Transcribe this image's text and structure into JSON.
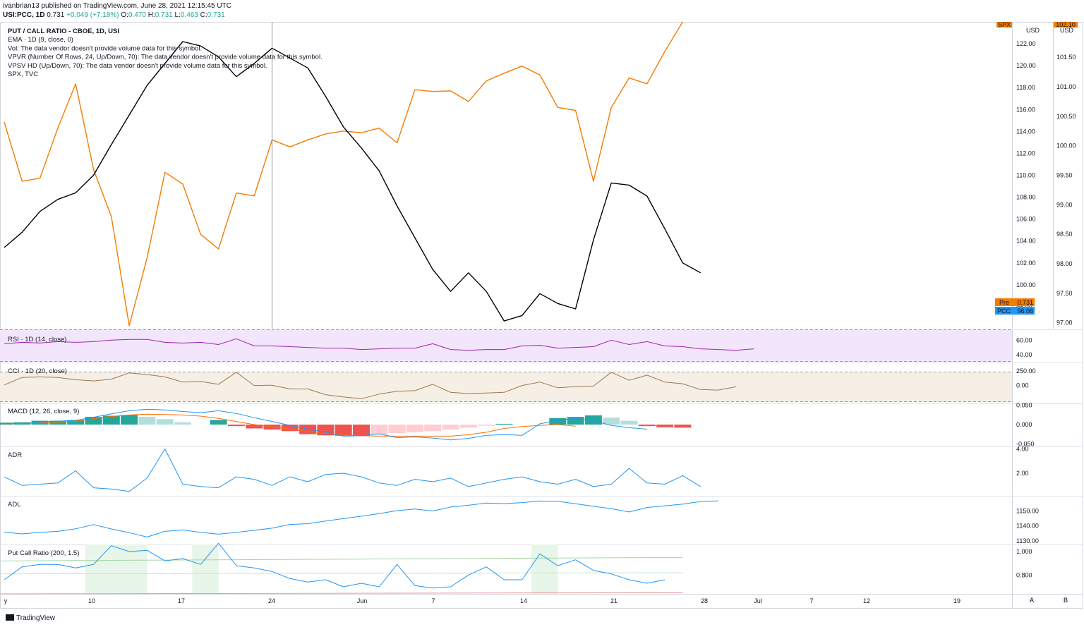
{
  "header": {
    "line1": "ivanbrian13 published on TradingView.com, June 28, 2021 12:15:45 UTC",
    "symbol": "USI:PCC, 1D",
    "last": "0.731",
    "change": "+0.049 (+7.18%)",
    "o_label": "O:",
    "o": "0.470",
    "h_label": "H:",
    "h": "0.731",
    "l_label": "L:",
    "l": "0.463",
    "c_label": "C:",
    "c": "0.731"
  },
  "legend": [
    "PUT / CALL RATIO - CBOE, 1D, USI",
    "EMA · 1D (9, close, 0)",
    "Vol: The data vendor doesn't provide volume data for this symbol.",
    "VPVR (Number Of Rows, 24, Up/Down, 70): The data vendor doesn't provide volume data for this symbol.",
    "VPSV HD (Up/Down, 70): The data vendor doesn't provide volume data for this symbol.",
    "SPX, TVC"
  ],
  "footer": {
    "brand": "TradingView"
  },
  "colors": {
    "pcc": "#000000",
    "spx": "#f57c00",
    "rsi": "#9c27b0",
    "rsi_bg": "#f3e5fc",
    "cci": "#a0784f",
    "cci_bg": "#f5efe6",
    "macd": "#2196f3",
    "signal": "#ff6d00",
    "hist_up": "#26a69a",
    "hist_up_light": "#b2dfdb",
    "hist_dn": "#ef5350",
    "hist_dn_light": "#ffcdd2",
    "blue": "#2196f3",
    "shade": "#e8f5e9"
  },
  "chart_data": {
    "type": "line",
    "x_labels": [
      "10",
      "17",
      "24",
      "Jun",
      "7",
      "14",
      "21",
      "28",
      "Jul",
      "7",
      "12",
      "19"
    ],
    "main": {
      "axis_spx": {
        "ticks": [
          "122.00",
          "120.00",
          "118.00",
          "116.00",
          "114.00",
          "112.00",
          "110.00",
          "108.00",
          "106.00",
          "104.00",
          "102.00",
          "100.00",
          "98.00"
        ],
        "currency": "USD",
        "ylim": [
          96,
          124
        ]
      },
      "axis_pcc": {
        "ticks": [
          "101.50",
          "101.00",
          "100.50",
          "100.00",
          "99.50",
          "99.00",
          "98.50",
          "98.00",
          "97.50",
          "97.00"
        ],
        "currency": "USD",
        "ylim": [
          96.9,
          102.1
        ]
      },
      "labels": {
        "spx_tag": "SPX",
        "spx_last": "102.10",
        "pre_label": "Pre",
        "pre_value": "0.731",
        "pcc_label": "PCC",
        "pcc_value": "96.06"
      },
      "series": [
        {
          "name": "SPX",
          "axis": "pcc",
          "values": [
            100.4,
            99.4,
            99.45,
            100.3,
            101.05,
            99.6,
            98.8,
            96.95,
            98.1,
            99.55,
            99.35,
            98.5,
            98.25,
            99.2,
            99.15,
            100.1,
            99.98,
            100.1,
            100.2,
            100.25,
            100.22,
            100.3,
            100.05,
            100.95,
            100.92,
            100.93,
            100.75,
            101.1,
            101.23,
            101.35,
            101.2,
            100.65,
            100.6,
            99.4,
            100.65,
            101.15,
            101.05,
            101.6,
            102.1
          ]
        },
        {
          "name": "PCC",
          "axis": "spx",
          "values": [
            103.4,
            104.8,
            106.7,
            107.8,
            108.4,
            110.0,
            112.8,
            115.5,
            118.2,
            120.2,
            122.2,
            121.8,
            120.8,
            119.0,
            120.2,
            121.6,
            120.7,
            119.8,
            117.2,
            114.4,
            112.5,
            110.4,
            107.2,
            104.3,
            101.4,
            99.4,
            101.1,
            99.4,
            96.7,
            97.2,
            99.2,
            98.3,
            97.8,
            104.1,
            109.3,
            109.1,
            108.1,
            105.1,
            102.0,
            101.1
          ]
        }
      ]
    },
    "rsi": {
      "title": "RSI · 1D (14, close)",
      "ticks": [
        "60.00",
        "40.00"
      ],
      "ylim": [
        30,
        75
      ],
      "values": [
        55,
        57,
        56,
        58,
        57,
        58,
        60,
        61,
        61,
        57,
        56,
        57,
        54,
        62,
        52,
        52,
        51,
        50,
        49,
        49,
        47,
        48,
        49,
        49,
        55,
        47,
        46,
        47,
        47,
        52,
        53,
        49,
        50,
        51,
        60,
        54,
        58,
        52,
        51,
        48,
        47,
        46,
        48
      ]
    },
    "cci": {
      "title": "CCI · 1D (20, close)",
      "ticks": [
        "250.00",
        "0.00"
      ],
      "ylim": [
        -300,
        400
      ],
      "values": [
        10,
        140,
        150,
        140,
        100,
        80,
        110,
        220,
        190,
        150,
        60,
        70,
        20,
        230,
        0,
        5,
        -60,
        -60,
        -160,
        -200,
        -230,
        -150,
        -100,
        -90,
        20,
        -120,
        -140,
        -130,
        -120,
        0,
        60,
        -40,
        -20,
        -10,
        230,
        90,
        180,
        60,
        30,
        -70,
        -80,
        -20
      ]
    },
    "macd": {
      "title": "MACD (12, 26, close, 9)",
      "ticks": [
        "0.050",
        "0.000",
        "-0.050"
      ],
      "ylim": [
        -0.055,
        0.055
      ],
      "macd": [
        0.003,
        0.002,
        0.006,
        0.009,
        0.011,
        0.019,
        0.028,
        0.036,
        0.04,
        0.038,
        0.034,
        0.031,
        0.036,
        0.029,
        0.018,
        0.008,
        -0.002,
        -0.012,
        -0.02,
        -0.03,
        -0.029,
        -0.024,
        -0.034,
        -0.032,
        -0.035,
        -0.04,
        -0.036,
        -0.028,
        -0.026,
        -0.028,
        0.002,
        0.011,
        0.016,
        0.01,
        -0.002,
        -0.008,
        -0.012
      ],
      "signal": [
        0.002,
        0.003,
        0.004,
        0.006,
        0.009,
        0.015,
        0.021,
        0.025,
        0.027,
        0.026,
        0.025,
        0.022,
        0.016,
        0.008,
        0.0,
        -0.006,
        -0.012,
        -0.018,
        -0.023,
        -0.027,
        -0.029,
        -0.03,
        -0.03,
        -0.03,
        -0.03,
        -0.03,
        -0.026,
        -0.02,
        -0.01,
        -0.005,
        -0.002,
        0.0,
        -0.004
      ],
      "hist": [
        0.005,
        0.006,
        0.01,
        0.01,
        0.012,
        0.02,
        0.023,
        0.025,
        0.02,
        0.014,
        0.006,
        0.0,
        0.012,
        -0.004,
        -0.01,
        -0.013,
        -0.017,
        -0.025,
        -0.028,
        -0.029,
        -0.03,
        -0.026,
        -0.022,
        -0.02,
        -0.017,
        -0.013,
        -0.008,
        -0.003,
        0.002,
        0.0,
        0.0,
        0.017,
        0.02,
        0.024,
        0.018,
        0.01,
        -0.004,
        -0.007,
        -0.008
      ]
    },
    "adr": {
      "title": "ADR",
      "ticks": [
        "4.00",
        "2.00"
      ],
      "ylim": [
        0.2,
        4.2
      ],
      "values": [
        1.7,
        1.0,
        1.1,
        1.2,
        2.2,
        0.8,
        0.7,
        0.5,
        1.6,
        4.0,
        1.1,
        0.9,
        0.8,
        1.7,
        1.5,
        1.0,
        1.7,
        1.3,
        1.9,
        2.0,
        1.7,
        1.2,
        1.0,
        1.5,
        1.3,
        1.6,
        0.9,
        1.2,
        1.5,
        1.7,
        1.3,
        1.1,
        1.5,
        0.9,
        1.1,
        2.4,
        1.2,
        1.1,
        1.8,
        0.9
      ]
    },
    "adl": {
      "title": "ADL",
      "ticks": [
        "1150.00",
        "1140.00",
        "1130.00"
      ],
      "ylim": [
        1128,
        1160
      ],
      "values": [
        1135.8,
        1134.6,
        1135.6,
        1136.3,
        1138.0,
        1140.8,
        1137.9,
        1135.4,
        1132.5,
        1136.3,
        1137.2,
        1135.6,
        1134.4,
        1135.6,
        1137.0,
        1138.4,
        1140.9,
        1141.4,
        1143.2,
        1144.8,
        1146.4,
        1148.1,
        1150.1,
        1151.2,
        1149.9,
        1152.5,
        1153.7,
        1155.2,
        1154.8,
        1155.5,
        1156.5,
        1156.3,
        1154.7,
        1153.0,
        1151.4,
        1149.2,
        1152.2,
        1153.3,
        1154.5,
        1156.2,
        1156.6
      ]
    },
    "putcall": {
      "title": "Put Call Ratio (200, 1.5)",
      "ticks": [
        "1.000",
        "0.800"
      ],
      "ylim": [
        0.64,
        1.06
      ],
      "values": [
        0.76,
        0.87,
        0.89,
        0.89,
        0.86,
        0.89,
        1.05,
        1.0,
        1.01,
        0.92,
        0.94,
        0.89,
        1.07,
        0.88,
        0.86,
        0.83,
        0.77,
        0.74,
        0.76,
        0.7,
        0.73,
        0.7,
        0.89,
        0.71,
        0.69,
        0.7,
        0.8,
        0.87,
        0.76,
        0.76,
        0.98,
        0.88,
        0.93,
        0.84,
        0.81,
        0.76,
        0.73,
        0.76
      ],
      "upper_band": [
        0.92,
        0.95
      ],
      "lower_band": [
        0.64,
        0.65
      ],
      "shade_regions": [
        [
          5,
          8
        ],
        [
          11,
          12
        ],
        [
          30,
          31
        ]
      ]
    }
  }
}
